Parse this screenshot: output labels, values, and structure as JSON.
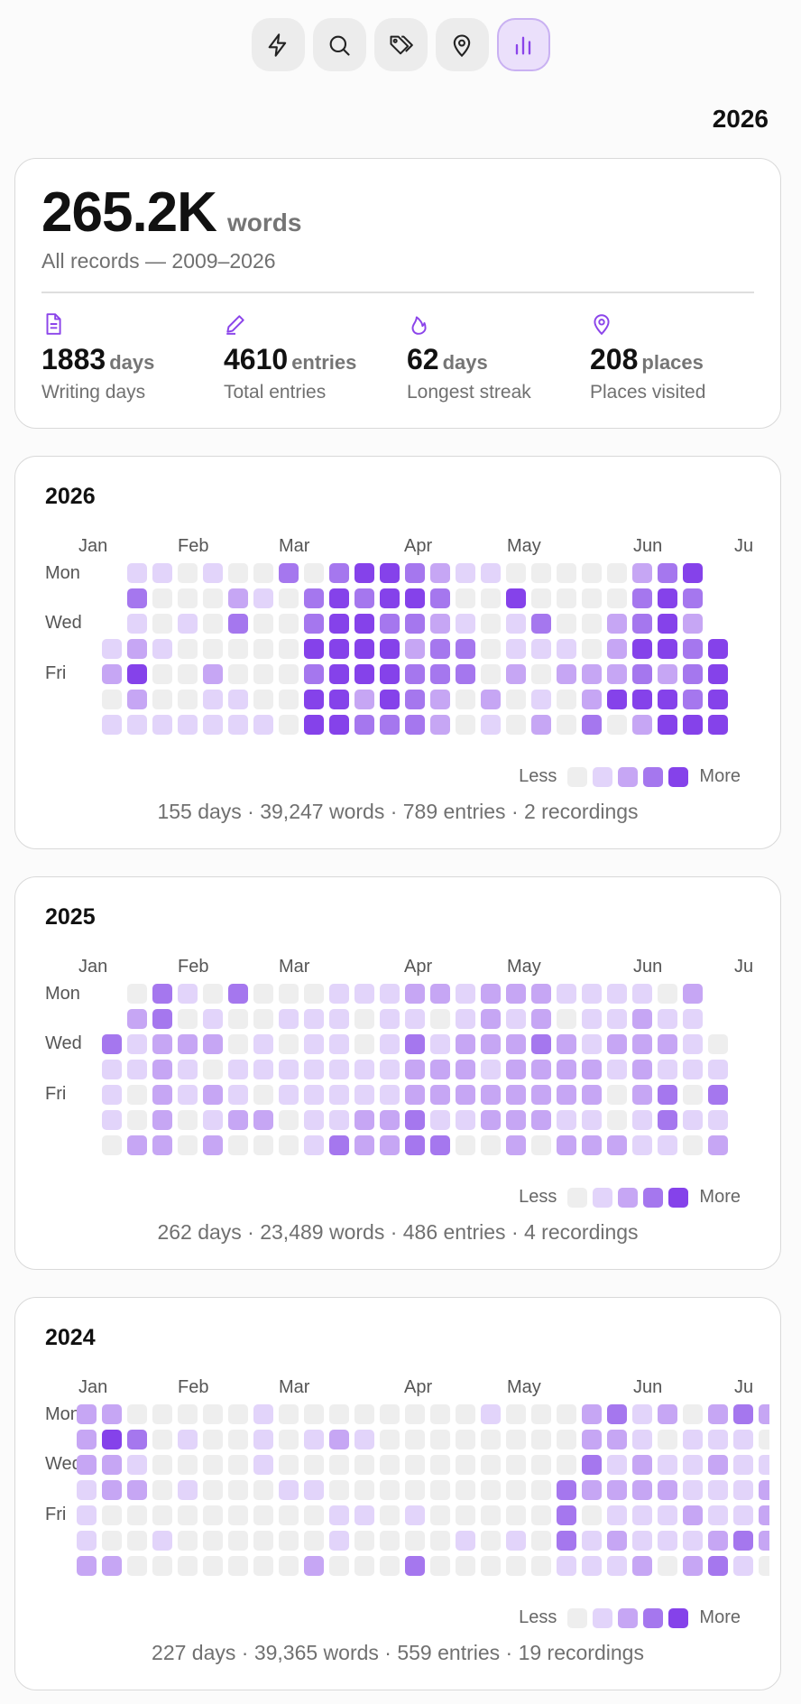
{
  "toolbar": {
    "buttons": [
      {
        "icon": "bolt-icon",
        "active": false
      },
      {
        "icon": "search-icon",
        "active": false
      },
      {
        "icon": "tags-icon",
        "active": false
      },
      {
        "icon": "location-pin-icon",
        "active": false
      },
      {
        "icon": "bar-chart-icon",
        "active": true
      }
    ]
  },
  "year_label": "2026",
  "summary": {
    "total": "265.2K",
    "unit": "words",
    "subtitle": "All records — 2009–2026",
    "stats": [
      {
        "icon": "document-icon",
        "value": "1883",
        "unit": "days",
        "label": "Writing days"
      },
      {
        "icon": "pencil-icon",
        "value": "4610",
        "unit": "entries",
        "label": "Total entries"
      },
      {
        "icon": "flame-icon",
        "value": "62",
        "unit": "days",
        "label": "Longest streak"
      },
      {
        "icon": "location-pin-icon",
        "value": "208",
        "unit": "places",
        "label": "Places visited"
      }
    ]
  },
  "colors": {
    "accent": "#8b44ea",
    "levels": [
      "#eeeeee",
      "#e2d4fa",
      "#c6a6f4",
      "#a577ee",
      "#8542ea"
    ]
  },
  "heatmaps": [
    {
      "year": "2026",
      "months": [
        "Jan",
        "Feb",
        "Mar",
        "Apr",
        "May",
        "Jun",
        "Ju"
      ],
      "day_labels": [
        "Mon",
        "Wed",
        "Fri"
      ],
      "legend_less": "Less",
      "legend_more": "More",
      "footer": "155 days · 39,247 words · 789 entries · 2 recordings",
      "rows": [
        "-11010030344321100000234",
        "-30002103434430040000343",
        "-10103003443321013002342",
        "1210000044442330111024434",
        "2400200034443330202223234",
        "0200110044243202010244434",
        "1111111044333201020302444"
      ]
    },
    {
      "year": "2025",
      "months": [
        "Jan",
        "Feb",
        "Mar",
        "Apr",
        "May",
        "Jun",
        "Ju"
      ],
      "day_labels": [
        "Mon",
        "Wed",
        "Fri"
      ],
      "legend_less": "Less",
      "legend_more": "More",
      "footer": "262 days · 23,489 words · 486 entries · 4 recordings",
      "rows": [
        "-03103000111221222111102",
        "-23010011101101212011211",
        "3122201011013122232122210",
        "1121011111112221222212111",
        "1021210111112222222202303",
        "1020122011223112221101311",
        "0220200013223300202221102"
      ]
    },
    {
      "year": "2024",
      "months": [
        "Jan",
        "Feb",
        "Mar",
        "Apr",
        "May",
        "Jun",
        "Ju"
      ],
      "day_labels": [
        "Mon",
        "Wed",
        "Fri"
      ],
      "legend_less": "Less",
      "legend_more": "More",
      "footer": "227 days · 39,365 words · 559 entries · 19 recordings",
      "rows": [
        "2200000100000000100023120232",
        "2430100101210000000022101110",
        "2210000100000000000031211211",
        "1220100011000000000322221112",
        "1000000000110100000301112112",
        "1001000000100001010312111232",
        "2200000002000300000111202310"
      ]
    }
  ]
}
